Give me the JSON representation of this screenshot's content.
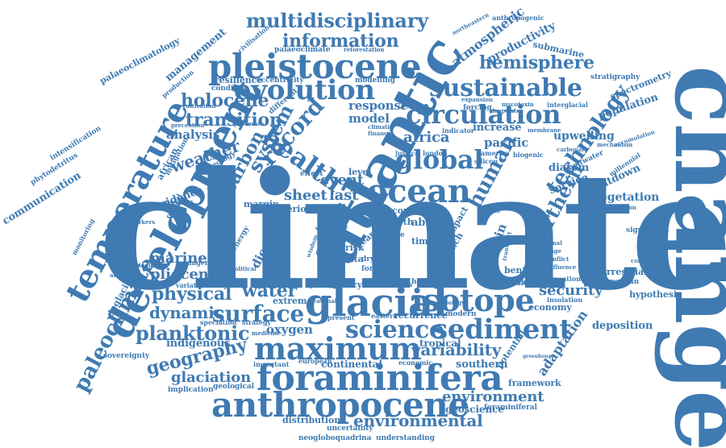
{
  "palette": {
    "primary": "#3f7ab2",
    "light": "#6fa0cc"
  },
  "words": [
    {
      "text": "climate",
      "size": 200
    },
    {
      "text": "change",
      "size": 120
    },
    {
      "text": "atlantic",
      "size": 78
    },
    {
      "text": "development",
      "size": 52
    },
    {
      "text": "temperature",
      "size": 44
    },
    {
      "text": "pleistocene",
      "size": 44
    },
    {
      "text": "glacial",
      "size": 50
    },
    {
      "text": "foraminifera",
      "size": 46
    },
    {
      "text": "anthropocene",
      "size": 44
    },
    {
      "text": "maximum",
      "size": 40
    },
    {
      "text": "ocean",
      "size": 40
    },
    {
      "text": "isotope",
      "size": 40
    },
    {
      "text": "sediment",
      "size": 38
    },
    {
      "text": "evolution",
      "size": 36
    },
    {
      "text": "circulation",
      "size": 34
    },
    {
      "text": "sustainable",
      "size": 32
    },
    {
      "text": "global",
      "size": 34
    },
    {
      "text": "health",
      "size": 36
    },
    {
      "text": "science",
      "size": 32
    },
    {
      "text": "surface",
      "size": 30
    },
    {
      "text": "paleoclimate",
      "size": 28
    },
    {
      "text": "multidisciplinary",
      "size": 24
    },
    {
      "text": "information",
      "size": 24
    },
    {
      "text": "hemisphere",
      "size": 24
    },
    {
      "text": "technology",
      "size": 28
    },
    {
      "text": "human",
      "size": 28
    },
    {
      "text": "northern",
      "size": 26
    },
    {
      "text": "record",
      "size": 30
    },
    {
      "text": "system",
      "size": 26
    },
    {
      "text": "carbon",
      "size": 24
    },
    {
      "text": "planktonic",
      "size": 26
    },
    {
      "text": "physical",
      "size": 24
    },
    {
      "text": "water",
      "size": 24
    },
    {
      "text": "dynamic",
      "size": 22
    },
    {
      "text": "holocene",
      "size": 24
    },
    {
      "text": "transition",
      "size": 24
    },
    {
      "text": "geography",
      "size": 24
    },
    {
      "text": "variability",
      "size": 22
    },
    {
      "text": "environment",
      "size": 20
    },
    {
      "text": "environmental",
      "size": 22
    },
    {
      "text": "glaciation",
      "size": 20
    },
    {
      "text": "weather",
      "size": 22
    },
    {
      "text": "security",
      "size": 20
    },
    {
      "text": "africa",
      "size": 20
    },
    {
      "text": "event",
      "size": 20
    },
    {
      "text": "sheet",
      "size": 20
    },
    {
      "text": "last",
      "size": 20
    },
    {
      "text": "pliocene",
      "size": 18
    },
    {
      "text": "marine",
      "size": 18
    },
    {
      "text": "hoinin",
      "size": 16
    },
    {
      "text": "response",
      "size": 16
    },
    {
      "text": "model",
      "size": 16
    },
    {
      "text": "analysis",
      "size": 16
    },
    {
      "text": "adaptation",
      "size": 18
    },
    {
      "text": "atmospheric",
      "size": 18
    },
    {
      "text": "productivity",
      "size": 16
    },
    {
      "text": "upwelling",
      "size": 16
    },
    {
      "text": "vegetation",
      "size": 16
    },
    {
      "text": "countdown",
      "size": 14
    },
    {
      "text": "service",
      "size": 14
    },
    {
      "text": "diatom",
      "size": 14
    },
    {
      "text": "population",
      "size": 14
    },
    {
      "text": "deposition",
      "size": 14
    },
    {
      "text": "continental",
      "size": 14
    },
    {
      "text": "southern",
      "size": 14
    },
    {
      "text": "tropical",
      "size": 14
    },
    {
      "text": "indigenous",
      "size": 14
    },
    {
      "text": "geoscience",
      "size": 13
    },
    {
      "text": "framework",
      "size": 12
    },
    {
      "text": "distribution",
      "size": 12
    },
    {
      "text": "uncertainty",
      "size": 10
    },
    {
      "text": "understanding",
      "size": 10
    },
    {
      "text": "neogloboquadrina",
      "size": 10
    },
    {
      "text": "economy",
      "size": 12
    },
    {
      "text": "benthic",
      "size": 12
    },
    {
      "text": "deglaciation",
      "size": 12
    },
    {
      "text": "oxygen",
      "size": 16
    },
    {
      "text": "recurrence",
      "size": 12
    },
    {
      "text": "extreme",
      "size": 12
    },
    {
      "text": "communication",
      "size": 14
    },
    {
      "text": "management",
      "size": 14
    },
    {
      "text": "palaeoclimatology",
      "size": 12
    },
    {
      "text": "terrestrial",
      "size": 12
    },
    {
      "text": "norwegian",
      "size": 10
    },
    {
      "text": "hypothesi",
      "size": 12
    },
    {
      "text": "significant",
      "size": 10
    },
    {
      "text": "submarine",
      "size": 12
    },
    {
      "text": "stratigraphy",
      "size": 10
    },
    {
      "text": "spectrometry",
      "size": 12
    },
    {
      "text": "palaeoclimate",
      "size": 10
    },
    {
      "text": "anthropogenic",
      "size": 9
    },
    {
      "text": "resilience",
      "size": 12
    },
    {
      "text": "eccentricity",
      "size": 10
    },
    {
      "text": "modelling",
      "size": 10
    },
    {
      "text": "pacific",
      "size": 16
    },
    {
      "text": "increase",
      "size": 14
    },
    {
      "text": "potential",
      "size": 12
    },
    {
      "text": "phytodetritus",
      "size": 10
    },
    {
      "text": "intensification",
      "size": 10
    },
    {
      "text": "sovereignty",
      "size": 10
    },
    {
      "text": "implication",
      "size": 10
    },
    {
      "text": "geological",
      "size": 10
    },
    {
      "text": "abrupt",
      "size": 14
    },
    {
      "text": "evidence",
      "size": 14
    },
    {
      "text": "coffee",
      "size": 14
    },
    {
      "text": "margin",
      "size": 12
    },
    {
      "text": "period",
      "size": 12
    },
    {
      "text": "core",
      "size": 12
    },
    {
      "text": "time",
      "size": 12
    },
    {
      "text": "cycle",
      "size": 12
    },
    {
      "text": "series",
      "size": 10
    },
    {
      "text": "policy",
      "size": 10
    },
    {
      "text": "heinrich",
      "size": 10
    },
    {
      "text": "modern",
      "size": 10
    },
    {
      "text": "altiplano",
      "size": 10
    },
    {
      "text": "formation",
      "size": 9
    },
    {
      "text": "insolation",
      "size": 9
    },
    {
      "text": "strategy",
      "size": 9
    },
    {
      "text": "speciation",
      "size": 9
    },
    {
      "text": "variation",
      "size": 9
    },
    {
      "text": "subpolar",
      "size": 9
    },
    {
      "text": "medicine",
      "size": 8
    },
    {
      "text": "younger",
      "size": 9
    },
    {
      "text": "earth",
      "size": 12
    },
    {
      "text": "epoch",
      "size": 12
    },
    {
      "text": "impact",
      "size": 12
    },
    {
      "text": "age",
      "size": 10
    },
    {
      "text": "dryas",
      "size": 10
    },
    {
      "text": "forest",
      "size": 10
    },
    {
      "text": "data",
      "size": 12
    },
    {
      "text": "risk",
      "size": 12
    },
    {
      "text": "effect",
      "size": 10
    },
    {
      "text": "level",
      "size": 12
    },
    {
      "text": "london",
      "size": 9
    },
    {
      "text": "america",
      "size": 9
    },
    {
      "text": "justice",
      "size": 9
    },
    {
      "text": "silicon",
      "size": 9
    },
    {
      "text": "bolivia",
      "size": 8
    },
    {
      "text": "internal",
      "size": 8
    },
    {
      "text": "leakage",
      "size": 8
    },
    {
      "text": "civilisation",
      "size": 9
    },
    {
      "text": "reforestation",
      "size": 8
    },
    {
      "text": "northeastern",
      "size": 8
    },
    {
      "text": "condition",
      "size": 10
    },
    {
      "text": "different",
      "size": 10
    },
    {
      "text": "production",
      "size": 9
    },
    {
      "text": "mitigation",
      "size": 10
    },
    {
      "text": "geology",
      "size": 10
    },
    {
      "text": "african",
      "size": 12
    },
    {
      "text": "orbital",
      "size": 10
    },
    {
      "text": "interglacial",
      "size": 9
    },
    {
      "text": "mycotoxin",
      "size": 8
    },
    {
      "text": "deepwater",
      "size": 8
    },
    {
      "text": "forcing",
      "size": 10
    },
    {
      "text": "indicator",
      "size": 9
    },
    {
      "text": "biogenic",
      "size": 9
    },
    {
      "text": "membrane",
      "size": 8
    },
    {
      "text": "carbonate",
      "size": 8
    },
    {
      "text": "meltwater",
      "size": 10
    },
    {
      "text": "millennial",
      "size": 9
    },
    {
      "text": "accumulation",
      "size": 8
    },
    {
      "text": "radiocarbon",
      "size": 8
    },
    {
      "text": "mechanism",
      "size": 8
    },
    {
      "text": "political",
      "size": 8
    },
    {
      "text": "hydrological",
      "size": 8
    },
    {
      "text": "monitoring",
      "size": 9
    },
    {
      "text": "european",
      "size": 9
    },
    {
      "text": "important",
      "size": 9
    },
    {
      "text": "economic",
      "size": 9
    },
    {
      "text": "eastern",
      "size": 9
    },
    {
      "text": "present",
      "size": 9
    },
    {
      "text": "seasonal",
      "size": 8
    },
    {
      "text": "greenland",
      "size": 8
    },
    {
      "text": "biomarkers",
      "size": 8
    },
    {
      "text": "abundance",
      "size": 8
    },
    {
      "text": "conflict",
      "size": 8
    },
    {
      "text": "influence",
      "size": 8
    },
    {
      "text": "commercial",
      "size": 8
    },
    {
      "text": "leader",
      "size": 9
    },
    {
      "text": "major",
      "size": 10
    },
    {
      "text": "scale",
      "size": 10
    },
    {
      "text": "lake",
      "size": 9
    },
    {
      "text": "food",
      "size": 10
    },
    {
      "text": "year",
      "size": 12
    },
    {
      "text": "energy",
      "size": 10
    },
    {
      "text": "dioxide",
      "size": 16
    },
    {
      "text": "finance",
      "size": 8
    },
    {
      "text": "climatic",
      "size": 8
    },
    {
      "text": "expansion",
      "size": 8
    },
    {
      "text": "cultivation",
      "size": 8
    },
    {
      "text": "processes",
      "size": 8
    },
    {
      "text": "precession",
      "size": 8
    },
    {
      "text": "greenhouse",
      "size": 7
    },
    {
      "text": "foraminiferal",
      "size": 10
    },
    {
      "text": "wisdom",
      "size": 8
    },
    {
      "text": "biology",
      "size": 8
    },
    {
      "text": "transport",
      "size": 8
    },
    {
      "text": "medium",
      "size": 8
    }
  ]
}
